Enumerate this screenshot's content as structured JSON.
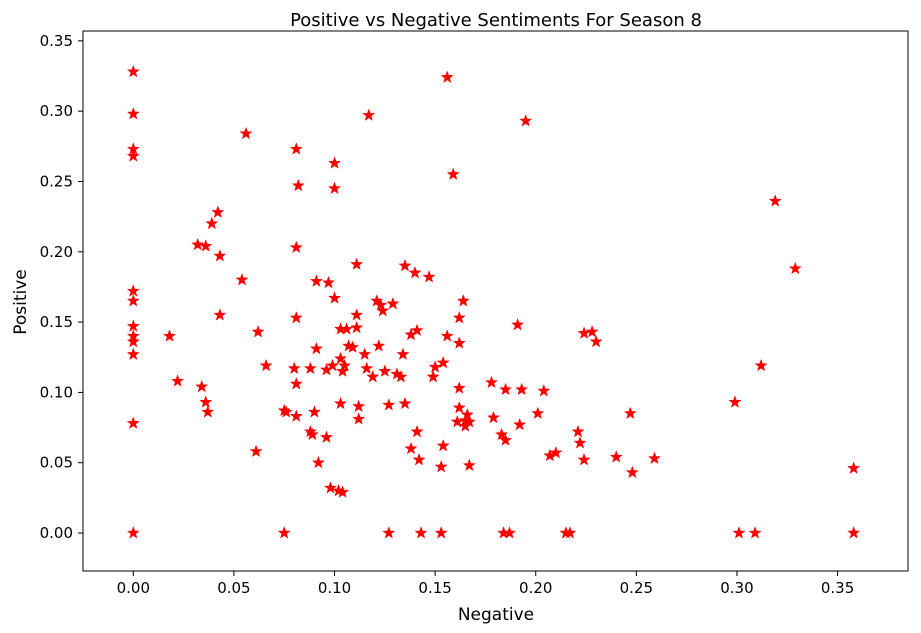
{
  "chart_data": {
    "type": "scatter",
    "title": "Positive vs Negative Sentiments For Season 8",
    "xlabel": "Negative",
    "ylabel": "Positive",
    "xlim": [
      -0.025,
      0.385
    ],
    "ylim": [
      -0.027,
      0.357
    ],
    "xticks": [
      "0.00",
      "0.05",
      "0.10",
      "0.15",
      "0.20",
      "0.25",
      "0.30",
      "0.35"
    ],
    "yticks": [
      "0.00",
      "0.05",
      "0.10",
      "0.15",
      "0.20",
      "0.25",
      "0.30",
      "0.35"
    ],
    "grid": false,
    "marker": "star",
    "marker_color": "#ff0000",
    "points": [
      [
        0.0,
        0.328
      ],
      [
        0.0,
        0.298
      ],
      [
        0.0,
        0.273
      ],
      [
        0.0,
        0.268
      ],
      [
        0.0,
        0.172
      ],
      [
        0.0,
        0.165
      ],
      [
        0.0,
        0.147
      ],
      [
        0.0,
        0.14
      ],
      [
        0.0,
        0.136
      ],
      [
        0.0,
        0.127
      ],
      [
        0.0,
        0.078
      ],
      [
        0.0,
        0.0
      ],
      [
        0.018,
        0.14
      ],
      [
        0.022,
        0.108
      ],
      [
        0.032,
        0.205
      ],
      [
        0.034,
        0.104
      ],
      [
        0.036,
        0.204
      ],
      [
        0.036,
        0.093
      ],
      [
        0.037,
        0.086
      ],
      [
        0.039,
        0.22
      ],
      [
        0.042,
        0.228
      ],
      [
        0.043,
        0.197
      ],
      [
        0.043,
        0.155
      ],
      [
        0.054,
        0.18
      ],
      [
        0.056,
        0.284
      ],
      [
        0.061,
        0.058
      ],
      [
        0.062,
        0.143
      ],
      [
        0.066,
        0.119
      ],
      [
        0.075,
        0.087
      ],
      [
        0.075,
        0.0
      ],
      [
        0.076,
        0.086
      ],
      [
        0.08,
        0.117
      ],
      [
        0.081,
        0.273
      ],
      [
        0.081,
        0.203
      ],
      [
        0.081,
        0.153
      ],
      [
        0.081,
        0.106
      ],
      [
        0.081,
        0.083
      ],
      [
        0.082,
        0.247
      ],
      [
        0.088,
        0.117
      ],
      [
        0.088,
        0.072
      ],
      [
        0.089,
        0.07
      ],
      [
        0.09,
        0.086
      ],
      [
        0.091,
        0.131
      ],
      [
        0.091,
        0.179
      ],
      [
        0.092,
        0.05
      ],
      [
        0.096,
        0.116
      ],
      [
        0.096,
        0.068
      ],
      [
        0.097,
        0.178
      ],
      [
        0.098,
        0.032
      ],
      [
        0.099,
        0.119
      ],
      [
        0.1,
        0.263
      ],
      [
        0.1,
        0.245
      ],
      [
        0.1,
        0.167
      ],
      [
        0.102,
        0.03
      ],
      [
        0.103,
        0.145
      ],
      [
        0.103,
        0.124
      ],
      [
        0.103,
        0.092
      ],
      [
        0.104,
        0.029
      ],
      [
        0.104,
        0.115
      ],
      [
        0.105,
        0.119
      ],
      [
        0.106,
        0.145
      ],
      [
        0.107,
        0.133
      ],
      [
        0.109,
        0.132
      ],
      [
        0.111,
        0.155
      ],
      [
        0.111,
        0.146
      ],
      [
        0.111,
        0.191
      ],
      [
        0.112,
        0.081
      ],
      [
        0.112,
        0.09
      ],
      [
        0.115,
        0.127
      ],
      [
        0.116,
        0.117
      ],
      [
        0.117,
        0.297
      ],
      [
        0.119,
        0.111
      ],
      [
        0.121,
        0.165
      ],
      [
        0.122,
        0.133
      ],
      [
        0.123,
        0.162
      ],
      [
        0.124,
        0.158
      ],
      [
        0.125,
        0.115
      ],
      [
        0.127,
        0.091
      ],
      [
        0.127,
        0.0
      ],
      [
        0.129,
        0.163
      ],
      [
        0.131,
        0.113
      ],
      [
        0.133,
        0.111
      ],
      [
        0.134,
        0.127
      ],
      [
        0.135,
        0.19
      ],
      [
        0.135,
        0.092
      ],
      [
        0.138,
        0.141
      ],
      [
        0.138,
        0.06
      ],
      [
        0.14,
        0.185
      ],
      [
        0.141,
        0.144
      ],
      [
        0.141,
        0.072
      ],
      [
        0.142,
        0.052
      ],
      [
        0.143,
        0.0
      ],
      [
        0.147,
        0.182
      ],
      [
        0.149,
        0.111
      ],
      [
        0.15,
        0.118
      ],
      [
        0.153,
        0.047
      ],
      [
        0.153,
        0.0
      ],
      [
        0.154,
        0.121
      ],
      [
        0.154,
        0.062
      ],
      [
        0.156,
        0.324
      ],
      [
        0.156,
        0.14
      ],
      [
        0.159,
        0.255
      ],
      [
        0.161,
        0.079
      ],
      [
        0.162,
        0.153
      ],
      [
        0.162,
        0.135
      ],
      [
        0.162,
        0.103
      ],
      [
        0.162,
        0.089
      ],
      [
        0.164,
        0.165
      ],
      [
        0.165,
        0.08
      ],
      [
        0.165,
        0.076
      ],
      [
        0.166,
        0.084
      ],
      [
        0.167,
        0.048
      ],
      [
        0.167,
        0.079
      ],
      [
        0.178,
        0.107
      ],
      [
        0.179,
        0.082
      ],
      [
        0.183,
        0.07
      ],
      [
        0.184,
        0.0
      ],
      [
        0.185,
        0.102
      ],
      [
        0.185,
        0.066
      ],
      [
        0.187,
        0.0
      ],
      [
        0.191,
        0.148
      ],
      [
        0.192,
        0.077
      ],
      [
        0.193,
        0.102
      ],
      [
        0.195,
        0.293
      ],
      [
        0.201,
        0.085
      ],
      [
        0.204,
        0.101
      ],
      [
        0.207,
        0.055
      ],
      [
        0.21,
        0.057
      ],
      [
        0.215,
        0.0
      ],
      [
        0.217,
        0.0
      ],
      [
        0.221,
        0.072
      ],
      [
        0.222,
        0.064
      ],
      [
        0.224,
        0.142
      ],
      [
        0.224,
        0.052
      ],
      [
        0.228,
        0.143
      ],
      [
        0.23,
        0.136
      ],
      [
        0.24,
        0.054
      ],
      [
        0.247,
        0.085
      ],
      [
        0.248,
        0.043
      ],
      [
        0.259,
        0.053
      ],
      [
        0.299,
        0.093
      ],
      [
        0.301,
        0.0
      ],
      [
        0.309,
        0.0
      ],
      [
        0.312,
        0.119
      ],
      [
        0.319,
        0.236
      ],
      [
        0.329,
        0.188
      ],
      [
        0.358,
        0.046
      ],
      [
        0.358,
        0.0
      ]
    ]
  }
}
